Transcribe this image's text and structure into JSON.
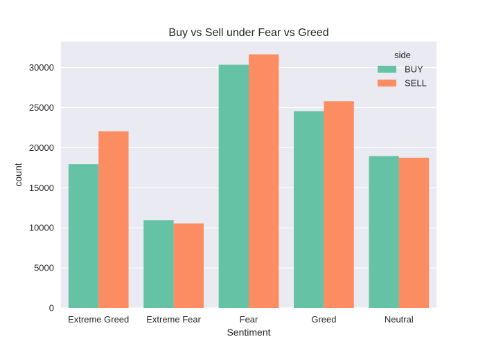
{
  "chart_data": {
    "type": "bar",
    "title": "Buy vs Sell under Fear vs Greed",
    "xlabel": "Sentiment",
    "ylabel": "count",
    "categories": [
      "Extreme Greed",
      "Extreme Fear",
      "Fear",
      "Greed",
      "Neutral"
    ],
    "series": [
      {
        "name": "BUY",
        "color": "#66c2a5",
        "values": [
          17950,
          10950,
          30350,
          24550,
          18950
        ]
      },
      {
        "name": "SELL",
        "color": "#fc8d62",
        "values": [
          22050,
          10550,
          31650,
          25800,
          18750
        ]
      }
    ],
    "ylim": [
      0,
      33250
    ],
    "yticks": [
      0,
      5000,
      10000,
      15000,
      20000,
      25000,
      30000
    ],
    "grid": true,
    "background": "#eaeaf2",
    "legend": {
      "title": "side",
      "position": "top-right"
    }
  }
}
